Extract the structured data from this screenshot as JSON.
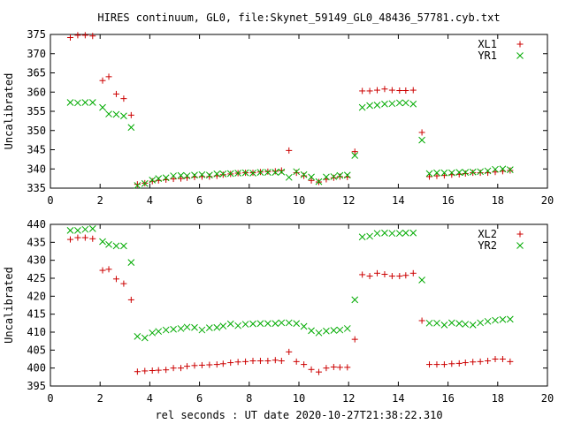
{
  "colors": {
    "xl": "#cc0000",
    "yr": "#00aa00",
    "axis": "#000000"
  },
  "chart_data": [
    {
      "type": "scatter",
      "title": "HIRES continuum, GL0, file:Skynet_59149_GL0_48436_57781.cyb.txt",
      "xlabel": "",
      "ylabel": "Uncalibrated",
      "xlim": [
        0,
        20
      ],
      "ylim": [
        335,
        375
      ],
      "xticks": [
        0,
        2,
        4,
        6,
        8,
        10,
        12,
        14,
        16,
        18,
        20
      ],
      "yticks": [
        335,
        340,
        345,
        350,
        355,
        360,
        365,
        370,
        375
      ],
      "legend_position": "top-right",
      "series": [
        {
          "name": "XL1",
          "marker": "+",
          "color": "#cc0000",
          "x": [
            0.8,
            1.1,
            1.4,
            1.7,
            2.1,
            2.35,
            2.65,
            2.95,
            3.25,
            3.5,
            3.8,
            4.1,
            4.35,
            4.65,
            4.95,
            5.25,
            5.5,
            5.8,
            6.1,
            6.4,
            6.7,
            6.95,
            7.25,
            7.55,
            7.85,
            8.15,
            8.45,
            8.75,
            9.05,
            9.3,
            9.6,
            9.9,
            10.2,
            10.5,
            10.8,
            11.1,
            11.4,
            11.65,
            11.95,
            12.25,
            12.55,
            12.85,
            13.15,
            13.45,
            13.75,
            14.05,
            14.3,
            14.6,
            14.95,
            15.25,
            15.55,
            15.85,
            16.15,
            16.45,
            16.7,
            17.0,
            17.3,
            17.6,
            17.9,
            18.2,
            18.5
          ],
          "y": [
            374.2,
            374.8,
            374.8,
            374.6,
            363.0,
            364.0,
            359.5,
            358.3,
            354.0,
            336.0,
            336.3,
            336.8,
            337.0,
            337.2,
            337.4,
            337.5,
            337.7,
            337.9,
            338.0,
            338.0,
            338.2,
            338.5,
            338.7,
            338.9,
            339.0,
            339.0,
            339.2,
            339.3,
            339.4,
            339.6,
            344.8,
            339.0,
            338.2,
            337.0,
            336.6,
            337.3,
            337.7,
            338.0,
            337.9,
            344.5,
            360.3,
            360.3,
            360.5,
            360.8,
            360.5,
            360.4,
            360.4,
            360.5,
            349.5,
            338.0,
            338.2,
            338.3,
            338.5,
            338.6,
            338.8,
            339.0,
            339.0,
            339.0,
            339.2,
            339.4,
            339.6
          ]
        },
        {
          "name": "YR1",
          "marker": "x",
          "color": "#00aa00",
          "x": [
            0.8,
            1.1,
            1.4,
            1.7,
            2.1,
            2.35,
            2.65,
            2.95,
            3.25,
            3.5,
            3.8,
            4.1,
            4.35,
            4.65,
            4.95,
            5.25,
            5.5,
            5.8,
            6.1,
            6.4,
            6.7,
            6.95,
            7.25,
            7.55,
            7.85,
            8.15,
            8.45,
            8.75,
            9.05,
            9.3,
            9.6,
            9.9,
            10.2,
            10.5,
            10.8,
            11.1,
            11.4,
            11.65,
            11.95,
            12.25,
            12.55,
            12.85,
            13.15,
            13.45,
            13.75,
            14.05,
            14.3,
            14.6,
            14.95,
            15.25,
            15.55,
            15.85,
            16.15,
            16.45,
            16.7,
            17.0,
            17.3,
            17.6,
            17.9,
            18.2,
            18.5
          ],
          "y": [
            357.3,
            357.2,
            357.3,
            357.3,
            356.0,
            354.3,
            354.2,
            353.8,
            350.8,
            335.7,
            336.2,
            337.1,
            337.5,
            337.7,
            338.2,
            338.3,
            338.2,
            338.4,
            338.5,
            338.4,
            338.7,
            338.7,
            338.8,
            338.9,
            339.0,
            338.9,
            339.1,
            339.1,
            339.1,
            339.2,
            337.8,
            339.3,
            338.5,
            337.9,
            336.7,
            337.9,
            338.0,
            338.3,
            338.4,
            343.5,
            356.0,
            356.5,
            356.6,
            356.9,
            357.0,
            357.2,
            357.2,
            356.9,
            347.5,
            338.8,
            339.0,
            339.0,
            339.0,
            339.1,
            339.1,
            339.2,
            339.3,
            339.5,
            339.9,
            340.0,
            339.8
          ]
        }
      ]
    },
    {
      "type": "scatter",
      "title": "",
      "xlabel": "rel seconds : UT date 2020-10-27T21:38:22.310",
      "ylabel": "Uncalibrated",
      "xlim": [
        0,
        20
      ],
      "ylim": [
        395,
        440
      ],
      "xticks": [
        0,
        2,
        4,
        6,
        8,
        10,
        12,
        14,
        16,
        18,
        20
      ],
      "yticks": [
        395,
        400,
        405,
        410,
        415,
        420,
        425,
        430,
        435,
        440
      ],
      "legend_position": "top-right",
      "series": [
        {
          "name": "XL2",
          "marker": "+",
          "color": "#cc0000",
          "x": [
            0.8,
            1.1,
            1.4,
            1.7,
            2.1,
            2.35,
            2.65,
            2.95,
            3.25,
            3.5,
            3.8,
            4.1,
            4.35,
            4.65,
            4.95,
            5.25,
            5.5,
            5.8,
            6.1,
            6.4,
            6.7,
            6.95,
            7.25,
            7.55,
            7.85,
            8.15,
            8.45,
            8.75,
            9.05,
            9.3,
            9.6,
            9.9,
            10.2,
            10.5,
            10.8,
            11.1,
            11.4,
            11.65,
            11.95,
            12.25,
            12.55,
            12.85,
            13.15,
            13.45,
            13.75,
            14.05,
            14.3,
            14.6,
            14.95,
            15.25,
            15.55,
            15.85,
            16.15,
            16.45,
            16.7,
            17.0,
            17.3,
            17.6,
            17.9,
            18.2,
            18.5
          ],
          "y": [
            435.8,
            436.3,
            436.3,
            436.0,
            427.2,
            427.5,
            424.8,
            423.5,
            419.0,
            399.0,
            399.2,
            399.3,
            399.4,
            399.5,
            400.0,
            400.0,
            400.5,
            400.7,
            400.8,
            400.9,
            401.0,
            401.2,
            401.5,
            401.7,
            401.8,
            402.0,
            402.0,
            402.0,
            402.2,
            402.0,
            404.5,
            401.8,
            401.0,
            399.6,
            398.9,
            400.0,
            400.3,
            400.2,
            400.2,
            408.0,
            426.0,
            425.6,
            426.4,
            426.1,
            425.6,
            425.6,
            425.8,
            426.4,
            413.2,
            401.0,
            401.0,
            401.0,
            401.2,
            401.3,
            401.5,
            401.7,
            401.8,
            402.0,
            402.5,
            402.5,
            401.8
          ]
        },
        {
          "name": "YR2",
          "marker": "x",
          "color": "#00aa00",
          "x": [
            0.8,
            1.1,
            1.4,
            1.7,
            2.1,
            2.35,
            2.65,
            2.95,
            3.25,
            3.5,
            3.8,
            4.1,
            4.35,
            4.65,
            4.95,
            5.25,
            5.5,
            5.8,
            6.1,
            6.4,
            6.7,
            6.95,
            7.25,
            7.55,
            7.85,
            8.15,
            8.45,
            8.75,
            9.05,
            9.3,
            9.6,
            9.9,
            10.2,
            10.5,
            10.8,
            11.1,
            11.4,
            11.65,
            11.95,
            12.25,
            12.55,
            12.85,
            13.15,
            13.45,
            13.75,
            14.05,
            14.3,
            14.6,
            14.95,
            15.25,
            15.55,
            15.85,
            16.15,
            16.45,
            16.7,
            17.0,
            17.3,
            17.6,
            17.9,
            18.2,
            18.5
          ],
          "y": [
            438.3,
            438.3,
            438.6,
            438.8,
            435.2,
            434.4,
            434.0,
            434.0,
            429.4,
            408.8,
            408.4,
            409.8,
            410.2,
            410.6,
            410.8,
            411.0,
            411.4,
            411.3,
            410.6,
            411.2,
            411.3,
            411.7,
            412.3,
            411.8,
            412.2,
            412.3,
            412.4,
            412.4,
            412.4,
            412.6,
            412.6,
            412.4,
            411.6,
            410.4,
            409.8,
            410.3,
            410.5,
            410.6,
            411.0,
            419.0,
            436.5,
            436.7,
            437.5,
            437.6,
            437.5,
            437.5,
            437.6,
            437.6,
            424.5,
            412.5,
            412.5,
            412.0,
            412.6,
            412.4,
            412.2,
            412.0,
            412.6,
            413.0,
            413.3,
            413.5,
            413.6
          ]
        }
      ]
    }
  ]
}
